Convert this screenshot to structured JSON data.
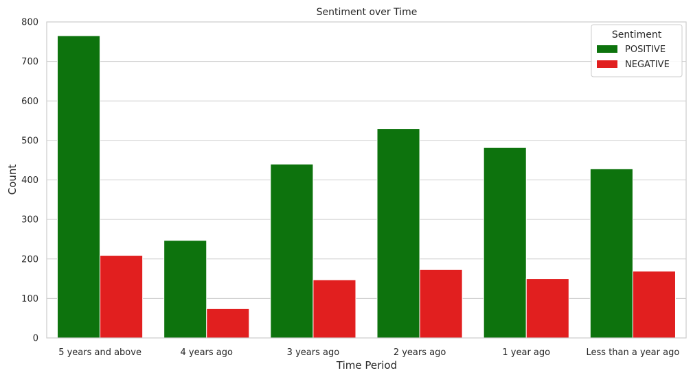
{
  "chart_data": {
    "type": "bar",
    "title": "Sentiment over Time",
    "xlabel": "Time Period",
    "ylabel": "Count",
    "ylim": [
      0,
      800
    ],
    "yticks": [
      0,
      100,
      200,
      300,
      400,
      500,
      600,
      700,
      800
    ],
    "grid": true,
    "categories": [
      "5 years and above",
      "4 years ago",
      "3 years ago",
      "2 years ago",
      "1 year ago",
      "Less than a year ago"
    ],
    "series": [
      {
        "name": "POSITIVE",
        "color": "#0d730d",
        "values": [
          765,
          247,
          440,
          530,
          482,
          428
        ]
      },
      {
        "name": "NEGATIVE",
        "color": "#e11f1f",
        "values": [
          209,
          74,
          147,
          173,
          150,
          169
        ]
      }
    ],
    "legend": {
      "title": "Sentiment",
      "placement": "top-right"
    }
  }
}
